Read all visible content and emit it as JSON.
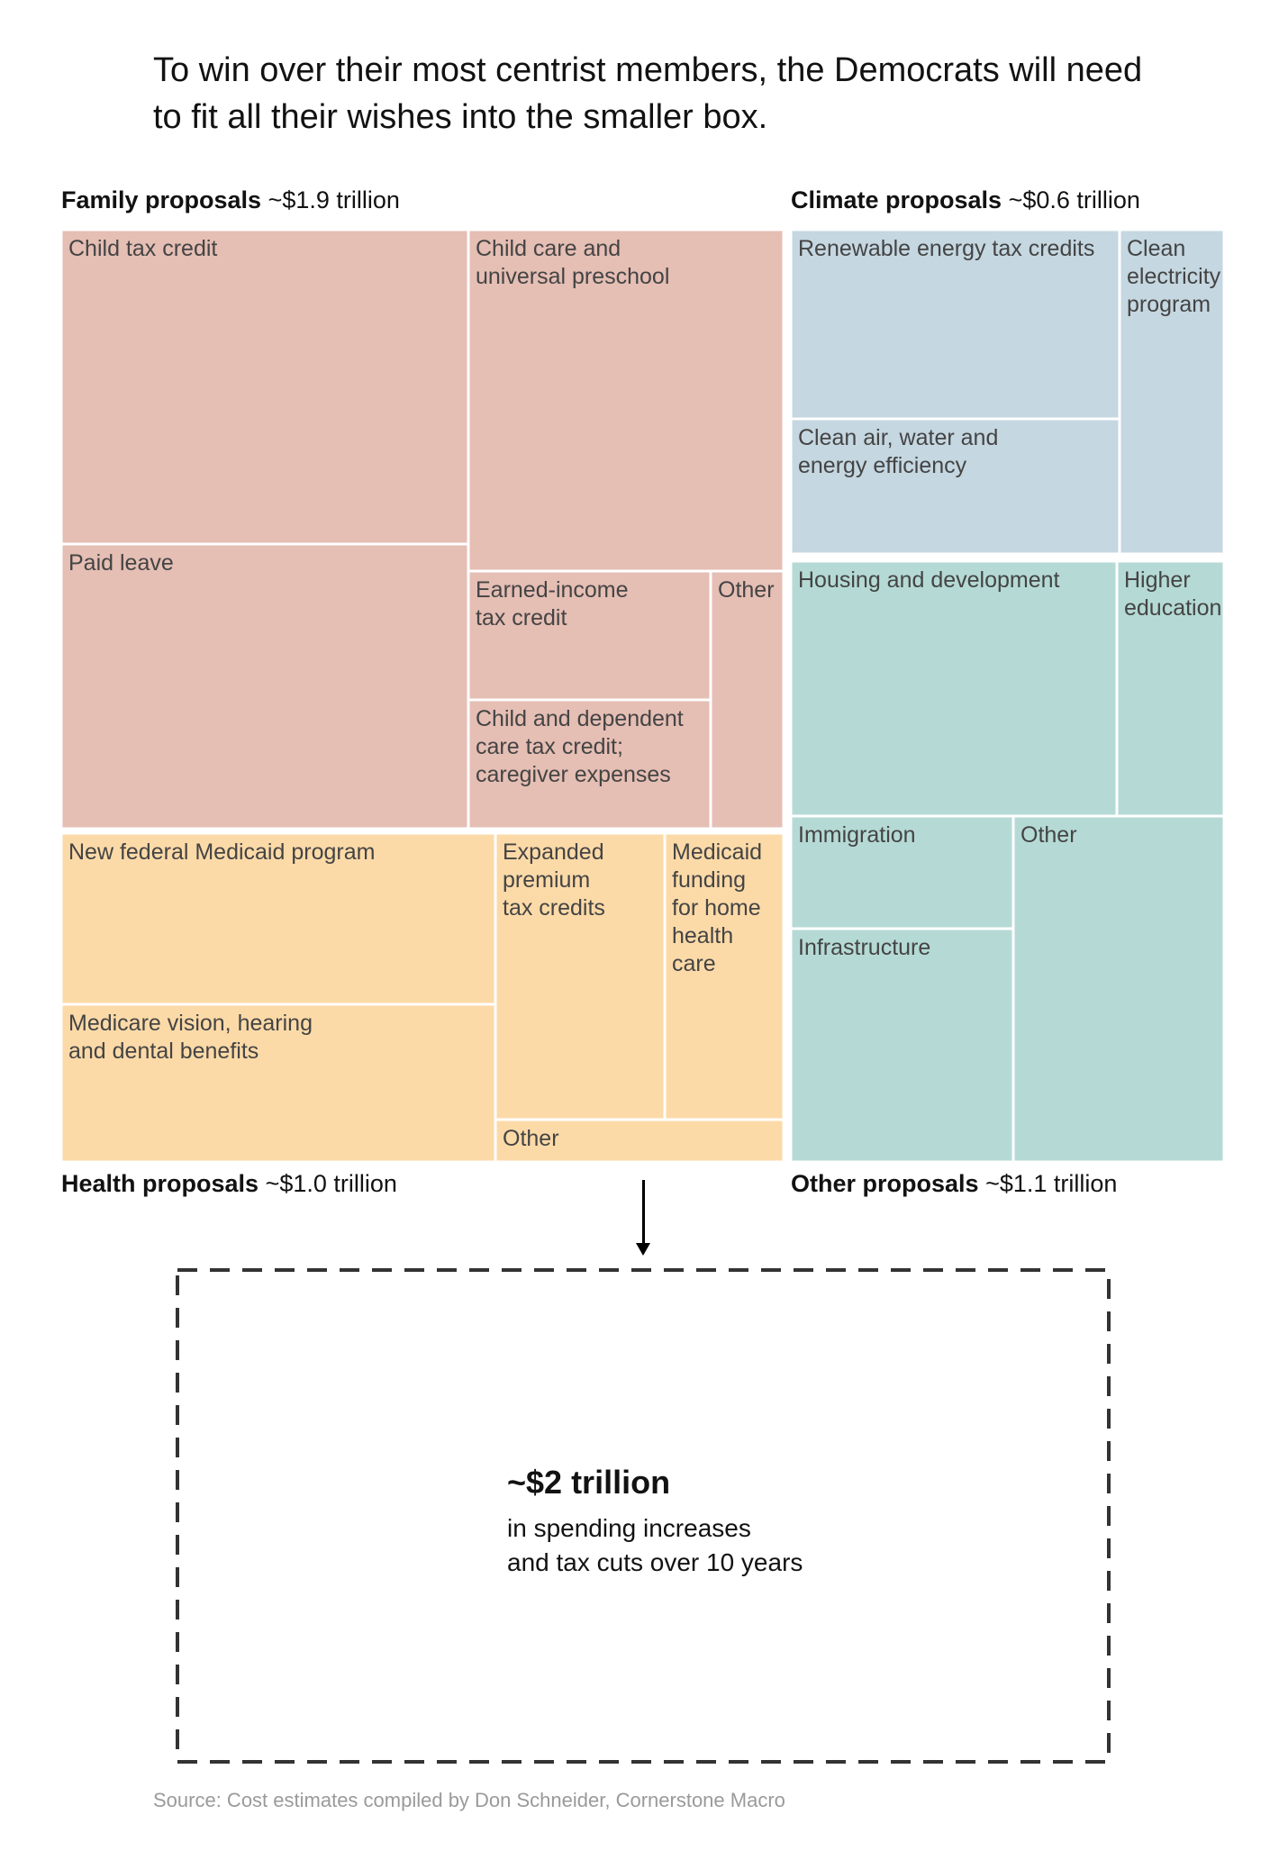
{
  "headline": "To win over their most centrist members, the Democrats will need to fit all their wishes into the smaller box.",
  "colors": {
    "family": "#e5beb4",
    "climate": "#c5d7e1",
    "health": "#fcdaa8",
    "other": "#b5dad5",
    "border": "#ffffff",
    "label_text": "#444444"
  },
  "group_labels": {
    "family": {
      "name": "Family proposals",
      "amount": "~$1.9 trillion"
    },
    "climate": {
      "name": "Climate proposals",
      "amount": "~$0.6 trillion"
    },
    "health": {
      "name": "Health proposals",
      "amount": "~$1.0 trillion"
    },
    "other": {
      "name": "Other proposals",
      "amount": "~$1.1 trillion"
    }
  },
  "chart_data": {
    "type": "treemap",
    "title": "To win over their most centrist members, the Democrats will need to fit all their wishes into the smaller box.",
    "units": "trillion dollars",
    "groups": [
      {
        "key": "family",
        "name": "Family proposals",
        "total": 1.9,
        "items": [
          {
            "label": [
              "Child tax credit"
            ],
            "value": 0.55
          },
          {
            "label": [
              "Paid leave"
            ],
            "value": 0.5
          },
          {
            "label": [
              "Child care and",
              "universal preschool"
            ],
            "value": 0.45
          },
          {
            "label": [
              "Earned-income",
              "tax credit"
            ],
            "value": 0.14
          },
          {
            "label": [
              "Child and dependent",
              "care tax credit;",
              "caregiver expenses"
            ],
            "value": 0.14
          },
          {
            "label": [
              "Other"
            ],
            "value": 0.12
          }
        ]
      },
      {
        "key": "climate",
        "name": "Climate proposals",
        "total": 0.6,
        "items": [
          {
            "label": [
              "Renewable energy tax credits"
            ],
            "value": 0.25
          },
          {
            "label": [
              "Clean air, water and",
              "energy efficiency"
            ],
            "value": 0.18
          },
          {
            "label": [
              "Clean",
              "electricity",
              "program"
            ],
            "value": 0.17
          }
        ]
      },
      {
        "key": "health",
        "name": "Health proposals",
        "total": 1.0,
        "items": [
          {
            "label": [
              "New federal Medicaid program"
            ],
            "value": 0.32
          },
          {
            "label": [
              "Medicare vision, hearing",
              "and dental benefits"
            ],
            "value": 0.24
          },
          {
            "label": [
              "Expanded",
              "premium",
              "tax credits"
            ],
            "value": 0.2
          },
          {
            "label": [
              "Medicaid",
              "funding",
              "for home",
              "health",
              "care"
            ],
            "value": 0.15
          },
          {
            "label": [
              "Other"
            ],
            "value": 0.09
          }
        ]
      },
      {
        "key": "other",
        "name": "Other proposals",
        "total": 1.1,
        "items": [
          {
            "label": [
              "Housing and development"
            ],
            "value": 0.33
          },
          {
            "label": [
              "Higher",
              "education"
            ],
            "value": 0.11
          },
          {
            "label": [
              "Immigration"
            ],
            "value": 0.11
          },
          {
            "label": [
              "Infrastructure"
            ],
            "value": 0.2
          },
          {
            "label": [
              "Other"
            ],
            "value": 0.35
          }
        ]
      }
    ],
    "target": {
      "amount": "~$2 trillion",
      "description": [
        "in spending increases",
        "and tax cuts over 10 years"
      ]
    }
  },
  "source": "Source: Cost estimates compiled by Don Schneider, Cornerstone Macro"
}
